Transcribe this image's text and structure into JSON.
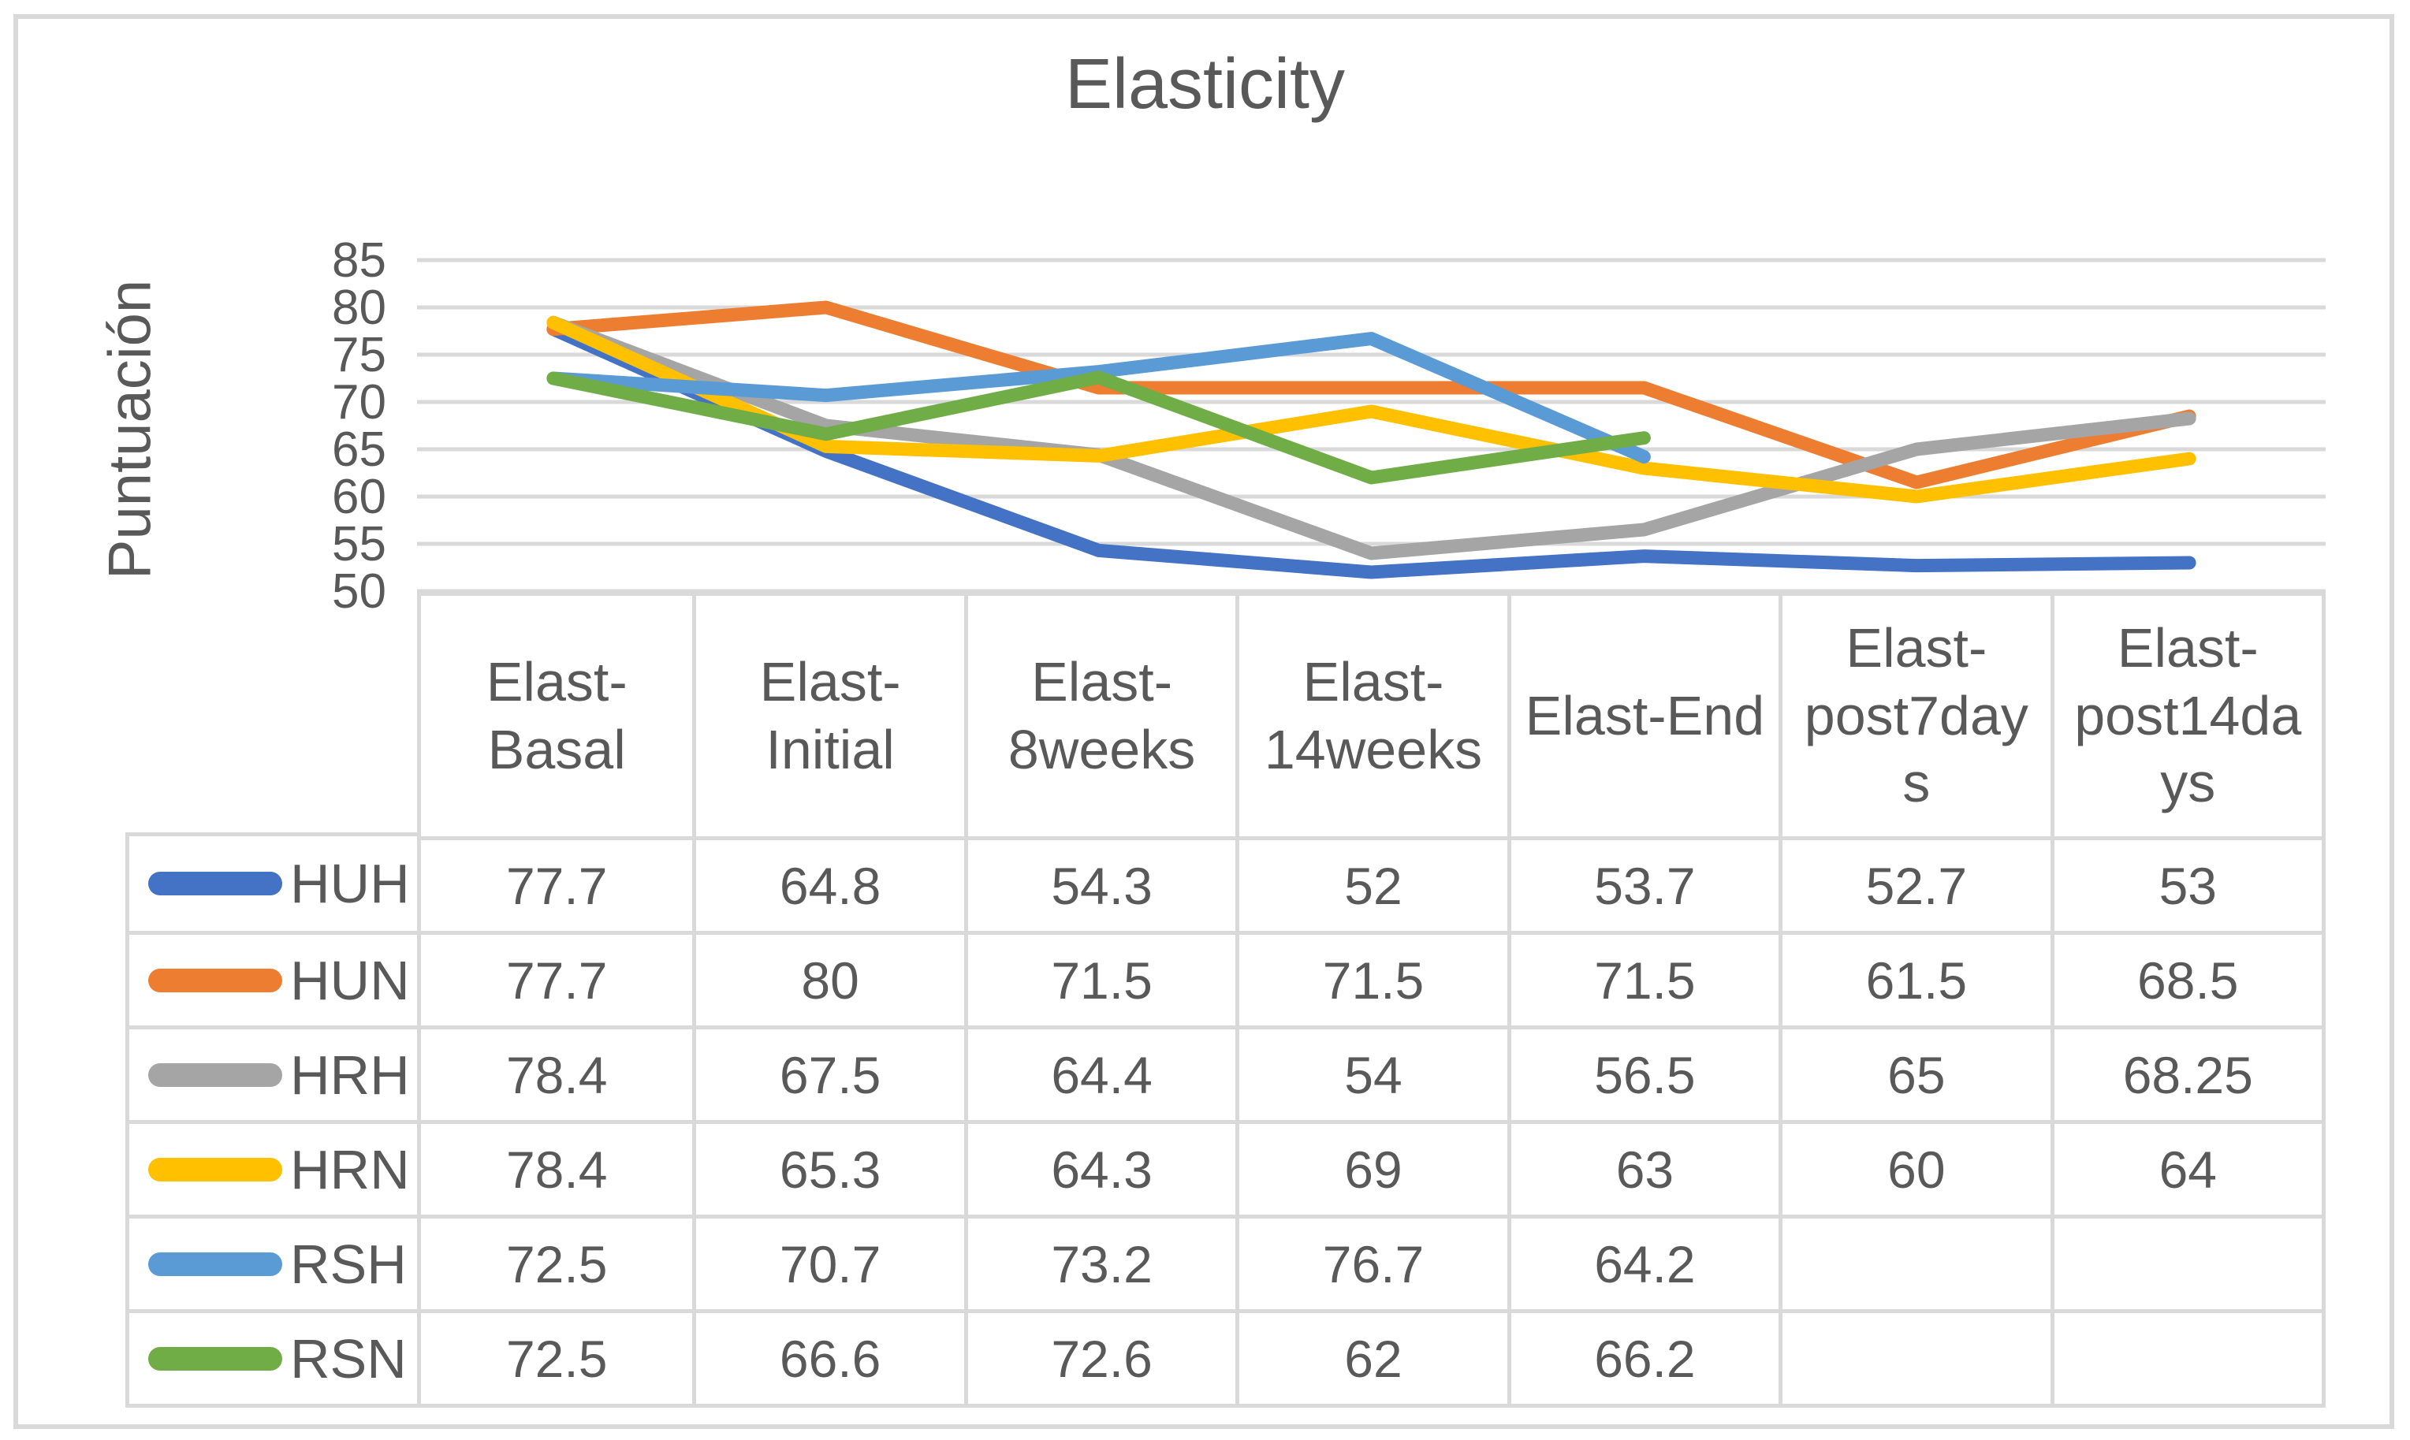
{
  "chart_data": {
    "type": "line",
    "title": "Elasticity",
    "y_axis_label": "Puntuación",
    "ylim": [
      50,
      85
    ],
    "y_ticks": [
      85,
      80,
      75,
      70,
      65,
      60,
      55,
      50
    ],
    "grid": true,
    "legend_position": "table-left",
    "categories": [
      "Elast-Basal",
      "Elast-Initial",
      "Elast-8weeks",
      "Elast-14weeks",
      "Elast-End",
      "Elast-post7days",
      "Elast-post14days"
    ],
    "category_display_lines": [
      [
        "Elast-",
        "Basal"
      ],
      [
        "Elast-",
        "Initial"
      ],
      [
        "Elast-",
        "8weeks"
      ],
      [
        "Elast-",
        "14weeks"
      ],
      [
        "Elast-End"
      ],
      [
        "Elast-",
        "post7day",
        "s"
      ],
      [
        "Elast-",
        "post14da",
        "ys"
      ]
    ],
    "series": [
      {
        "name": "HUH",
        "color": "#4472C4",
        "values": [
          77.7,
          64.8,
          54.3,
          52,
          53.7,
          52.7,
          53
        ]
      },
      {
        "name": "HUN",
        "color": "#ED7D31",
        "values": [
          77.7,
          80,
          71.5,
          71.5,
          71.5,
          61.5,
          68.5
        ]
      },
      {
        "name": "HRH",
        "color": "#A5A5A5",
        "values": [
          78.4,
          67.5,
          64.4,
          54,
          56.5,
          65,
          68.25
        ]
      },
      {
        "name": "HRN",
        "color": "#FFC000",
        "values": [
          78.4,
          65.3,
          64.3,
          69,
          63,
          60,
          64
        ]
      },
      {
        "name": "RSH",
        "color": "#5B9BD5",
        "values": [
          72.5,
          70.7,
          73.2,
          76.7,
          64.2,
          null,
          null
        ]
      },
      {
        "name": "RSN",
        "color": "#70AD47",
        "values": [
          72.5,
          66.6,
          72.6,
          62,
          66.2,
          null,
          null
        ]
      }
    ]
  },
  "colors": {
    "text": "#595959",
    "gridline": "#D9D9D9",
    "table_border": "#D9D9D9",
    "figure_border": "#D9D9D9"
  }
}
